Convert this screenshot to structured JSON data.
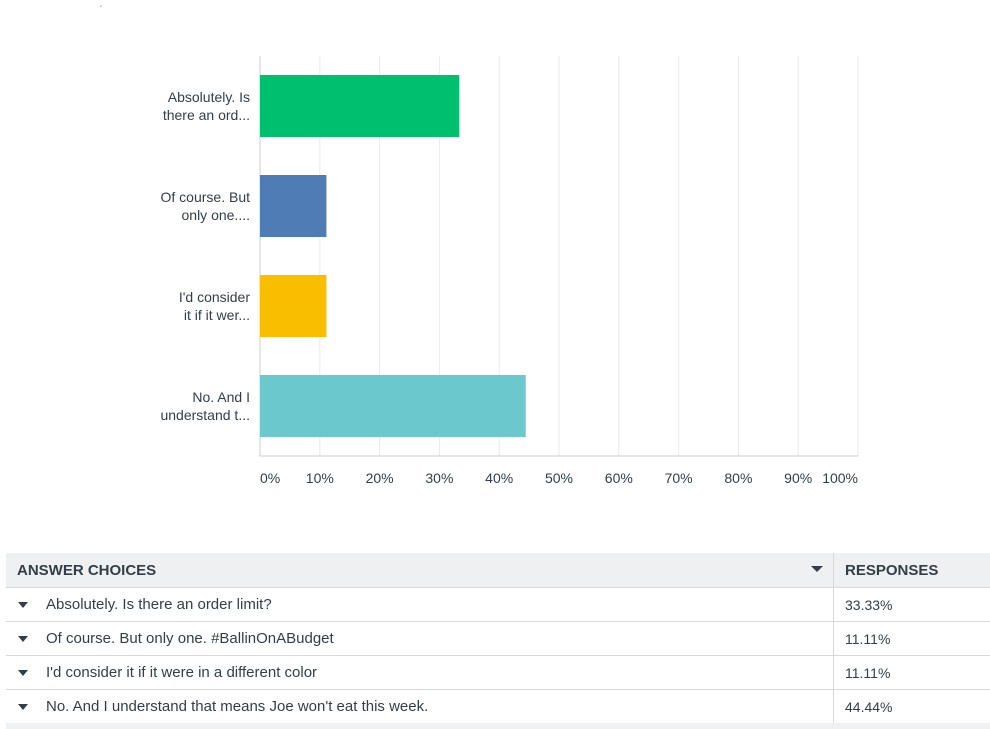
{
  "page": {
    "top_mark": "'"
  },
  "chart_data": {
    "type": "bar",
    "orientation": "horizontal",
    "categories": [
      "Absolutely. Is there an ord...",
      "Of course. But only one....",
      "I'd consider it if it wer...",
      "No. And I understand t..."
    ],
    "category_lines": [
      [
        "Absolutely. Is",
        "there an ord..."
      ],
      [
        "Of course. But",
        "only one...."
      ],
      [
        "I'd consider",
        "it if it wer..."
      ],
      [
        "No. And I",
        "understand t..."
      ]
    ],
    "values": [
      33.33,
      11.11,
      11.11,
      44.44
    ],
    "colors": [
      "#00bf6f",
      "#507cb6",
      "#f9be00",
      "#6bc8cd"
    ],
    "xlim": [
      0,
      100
    ],
    "xticks": [
      "0%",
      "10%",
      "20%",
      "30%",
      "40%",
      "50%",
      "60%",
      "70%",
      "80%",
      "90%",
      "100%"
    ],
    "grid": true
  },
  "table": {
    "header": {
      "answer_choices": "ANSWER CHOICES",
      "responses": "RESPONSES"
    },
    "rows": [
      {
        "answer": "Absolutely. Is there an order limit?",
        "response": "33.33%"
      },
      {
        "answer": "Of course. But only one. #BallinOnABudget",
        "response": "11.11%"
      },
      {
        "answer": "I'd consider it if it were in a different color",
        "response": "11.11%"
      },
      {
        "answer": "No. And I understand that means Joe won't eat this week.",
        "response": "44.44%"
      }
    ]
  }
}
